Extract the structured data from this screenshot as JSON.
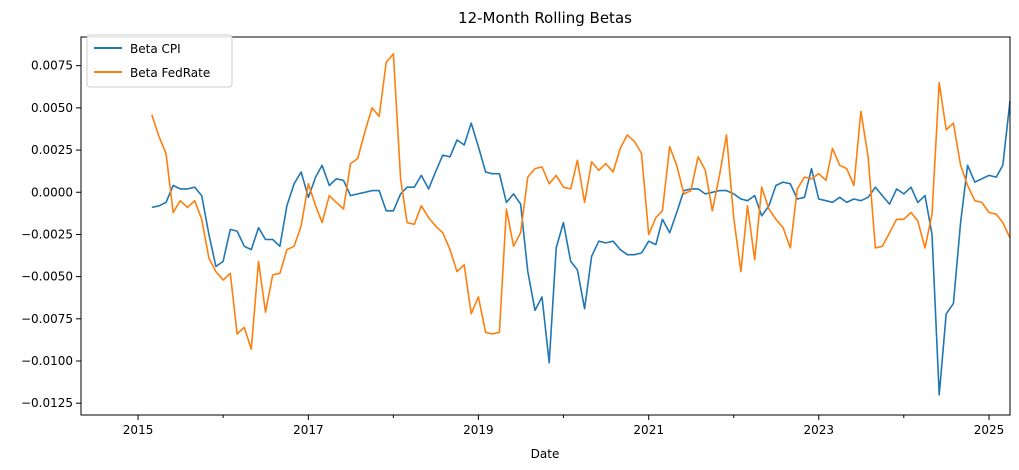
{
  "chart_data": {
    "type": "line",
    "title": "12-Month Rolling Betas",
    "xlabel": "Date",
    "ylabel": "",
    "legend_position": "top-left",
    "grid": false,
    "xlim": [
      "2014-05-01",
      "2025-04-01"
    ],
    "ylim": [
      -0.0132,
      0.0092
    ],
    "x_ticks": [
      {
        "date": "2015-01-01",
        "label": "2015"
      },
      {
        "date": "2017-01-01",
        "label": "2017"
      },
      {
        "date": "2019-01-01",
        "label": "2019"
      },
      {
        "date": "2021-01-01",
        "label": "2021"
      },
      {
        "date": "2023-01-01",
        "label": "2023"
      },
      {
        "date": "2025-01-01",
        "label": "2025"
      }
    ],
    "x_minor_ticks": [
      "2014-01-01",
      "2016-01-01",
      "2018-01-01",
      "2020-01-01",
      "2022-01-01",
      "2024-01-01"
    ],
    "y_ticks": [
      {
        "value": 0.0075,
        "label": "0.0075"
      },
      {
        "value": 0.005,
        "label": "0.0050"
      },
      {
        "value": 0.0025,
        "label": "0.0025"
      },
      {
        "value": 0.0,
        "label": "0.0000"
      },
      {
        "value": -0.0025,
        "label": "−0.0025"
      },
      {
        "value": -0.005,
        "label": "−0.0050"
      },
      {
        "value": -0.0075,
        "label": "−0.0075"
      },
      {
        "value": -0.01,
        "label": "−0.0100"
      },
      {
        "value": -0.0125,
        "label": "−0.0125"
      }
    ],
    "start_month": "2015-03",
    "series": [
      {
        "name": "Beta CPI",
        "color": "#1f77b4",
        "values": [
          -0.0009,
          -0.0008,
          -0.0006,
          0.0004,
          0.0002,
          0.0002,
          0.0003,
          -0.0002,
          -0.0025,
          -0.0044,
          -0.0041,
          -0.0022,
          -0.0023,
          -0.0032,
          -0.0034,
          -0.0021,
          -0.0028,
          -0.0028,
          -0.0032,
          -0.0008,
          0.0005,
          0.0012,
          -0.0003,
          0.0009,
          0.0016,
          0.0004,
          0.0008,
          0.0007,
          -0.0002,
          -0.0001,
          0.0,
          0.0001,
          0.0001,
          -0.0011,
          -0.0011,
          -0.0001,
          0.0003,
          0.0003,
          0.001,
          0.0002,
          0.0012,
          0.0022,
          0.0021,
          0.0031,
          0.0028,
          0.0041,
          0.0027,
          0.0012,
          0.0011,
          0.0011,
          -0.0006,
          -0.0001,
          -0.0007,
          -0.0047,
          -0.007,
          -0.0062,
          -0.0101,
          -0.0033,
          -0.0018,
          -0.0041,
          -0.0046,
          -0.0069,
          -0.0038,
          -0.0029,
          -0.003,
          -0.0029,
          -0.0034,
          -0.0037,
          -0.0037,
          -0.0036,
          -0.0029,
          -0.0031,
          -0.0016,
          -0.0024,
          -0.0012,
          0.0001,
          0.0002,
          0.0002,
          -0.0001,
          0.0,
          0.0001,
          0.0001,
          -0.0001,
          -0.0004,
          -0.0005,
          -0.0002,
          -0.0014,
          -0.0008,
          0.0004,
          0.0006,
          0.0005,
          -0.0004,
          -0.0003,
          0.0014,
          -0.0004,
          -0.0005,
          -0.0006,
          -0.0003,
          -0.0006,
          -0.0004,
          -0.0005,
          -0.0003,
          0.0003,
          -0.0002,
          -0.0007,
          0.0002,
          -0.0001,
          0.0003,
          -0.0006,
          -0.0002,
          -0.0025,
          -0.012,
          -0.0072,
          -0.0066,
          -0.0018,
          0.0016,
          0.0006,
          0.0008,
          0.001,
          0.0009,
          0.0016,
          0.0054
        ]
      },
      {
        "name": "Beta FedRate",
        "color": "#ff7f0e",
        "values": [
          0.0046,
          0.0033,
          0.0023,
          -0.0012,
          -0.0005,
          -0.0009,
          -0.0005,
          -0.0016,
          -0.0039,
          -0.0047,
          -0.0052,
          -0.0048,
          -0.0084,
          -0.008,
          -0.0093,
          -0.0041,
          -0.0071,
          -0.0049,
          -0.0048,
          -0.0034,
          -0.0032,
          -0.002,
          0.0005,
          -0.0008,
          -0.0018,
          -0.0002,
          -0.0006,
          -0.001,
          0.0017,
          0.002,
          0.0036,
          0.005,
          0.0045,
          0.0077,
          0.0082,
          0.0008,
          -0.0018,
          -0.0019,
          -0.0008,
          -0.0015,
          -0.002,
          -0.0024,
          -0.0034,
          -0.0047,
          -0.0043,
          -0.0072,
          -0.0062,
          -0.0083,
          -0.0084,
          -0.0083,
          -0.001,
          -0.0032,
          -0.0024,
          0.0009,
          0.0014,
          0.0015,
          0.0005,
          0.001,
          0.0003,
          0.0002,
          0.0019,
          -0.0006,
          0.0018,
          0.0013,
          0.0017,
          0.0012,
          0.0026,
          0.0034,
          0.003,
          0.0023,
          -0.0025,
          -0.0015,
          -0.0011,
          0.0027,
          0.0016,
          -0.0001,
          0.0001,
          0.0021,
          0.0013,
          -0.0011,
          0.001,
          0.0034,
          -0.0015,
          -0.0047,
          -0.0008,
          -0.004,
          0.0003,
          -0.001,
          -0.0016,
          -0.0021,
          -0.0033,
          0.0002,
          0.0009,
          0.0008,
          0.0011,
          0.0007,
          0.0026,
          0.0016,
          0.0014,
          0.0004,
          0.0048,
          0.0021,
          -0.0033,
          -0.0032,
          -0.0024,
          -0.0016,
          -0.0016,
          -0.0012,
          -0.0017,
          -0.0033,
          -0.0013,
          0.0065,
          0.0037,
          0.0041,
          0.0016,
          0.0004,
          -0.0005,
          -0.0006,
          -0.0012,
          -0.0013,
          -0.0018,
          -0.0027
        ]
      }
    ]
  }
}
